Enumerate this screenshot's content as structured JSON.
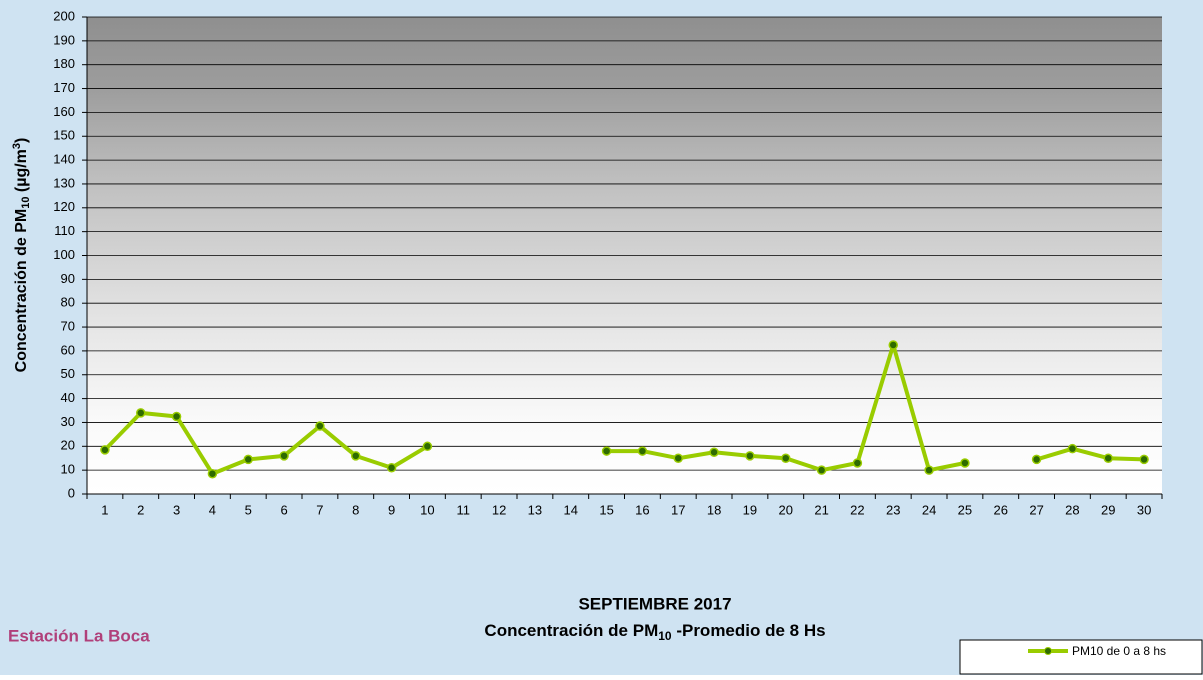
{
  "chart_data": {
    "type": "line",
    "title": "SEPTIEMBRE 2017",
    "subtitle": [
      "Concentración de PM",
      "10",
      " -Promedio de 8 Hs"
    ],
    "ylabel": [
      "Concentración de PM",
      "10",
      " (µg/m",
      "3",
      ")"
    ],
    "station": "Estación  La Boca",
    "categories": [
      "1",
      "2",
      "3",
      "4",
      "5",
      "6",
      "7",
      "8",
      "9",
      "10",
      "11",
      "12",
      "13",
      "14",
      "15",
      "16",
      "17",
      "18",
      "19",
      "20",
      "21",
      "22",
      "23",
      "24",
      "25",
      "26",
      "27",
      "28",
      "29",
      "30"
    ],
    "series": [
      {
        "name": "PM10 de 0 a 8 hs",
        "color": "#99cc00",
        "values": [
          18.5,
          34,
          32.5,
          8.5,
          14.5,
          16,
          28.5,
          16,
          11,
          20,
          null,
          null,
          null,
          null,
          18,
          18,
          15,
          17.5,
          16,
          15,
          10,
          13,
          62.5,
          10,
          13,
          null,
          14.5,
          19,
          15,
          14.5
        ]
      }
    ],
    "ylim": [
      0,
      200
    ],
    "yticks": [
      0,
      10,
      20,
      30,
      40,
      50,
      60,
      70,
      80,
      90,
      100,
      110,
      120,
      130,
      140,
      150,
      160,
      170,
      180,
      190,
      200
    ],
    "grid": true,
    "legend": "bottom-right"
  }
}
